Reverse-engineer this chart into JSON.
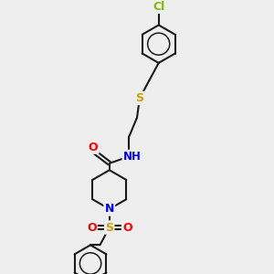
{
  "bg_color": "#eeeeee",
  "bond_color": "#1a1a1a",
  "bond_width": 1.5,
  "atom_colors": {
    "Cl": "#7cba00",
    "S": "#c8a000",
    "N": "#0000ff",
    "O": "#ff0000",
    "H": "#008080",
    "C": "#1a1a1a"
  },
  "figsize": [
    3.0,
    3.0
  ],
  "dpi": 100
}
